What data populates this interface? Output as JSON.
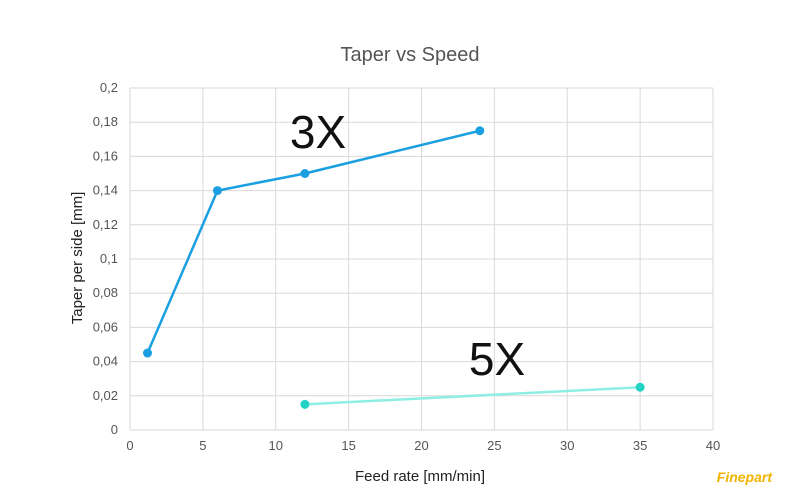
{
  "chart_data": {
    "type": "line",
    "title": "Taper vs Speed",
    "xlabel": "Feed rate [mm/min]",
    "ylabel": "Taper per side [mm]",
    "xlim": [
      0,
      40
    ],
    "ylim": [
      0,
      0.2
    ],
    "x_ticks": [
      "0",
      "5",
      "10",
      "15",
      "20",
      "25",
      "30",
      "35",
      "40"
    ],
    "y_ticks": [
      "0",
      "0,02",
      "0,04",
      "0,06",
      "0,08",
      "0,1",
      "0,12",
      "0,14",
      "0,16",
      "0,18",
      "0,2"
    ],
    "grid": true,
    "series": [
      {
        "name": "3X",
        "color": "#1a9fe0",
        "points": [
          [
            1.2,
            0.045
          ],
          [
            6,
            0.14
          ],
          [
            12,
            0.15
          ],
          [
            24,
            0.175
          ]
        ]
      },
      {
        "name": "5X",
        "color": "#8eeee4",
        "marker_color": "#22d3c5",
        "points": [
          [
            12,
            0.015
          ],
          [
            35,
            0.025
          ]
        ]
      }
    ]
  },
  "brand": "Finepart"
}
